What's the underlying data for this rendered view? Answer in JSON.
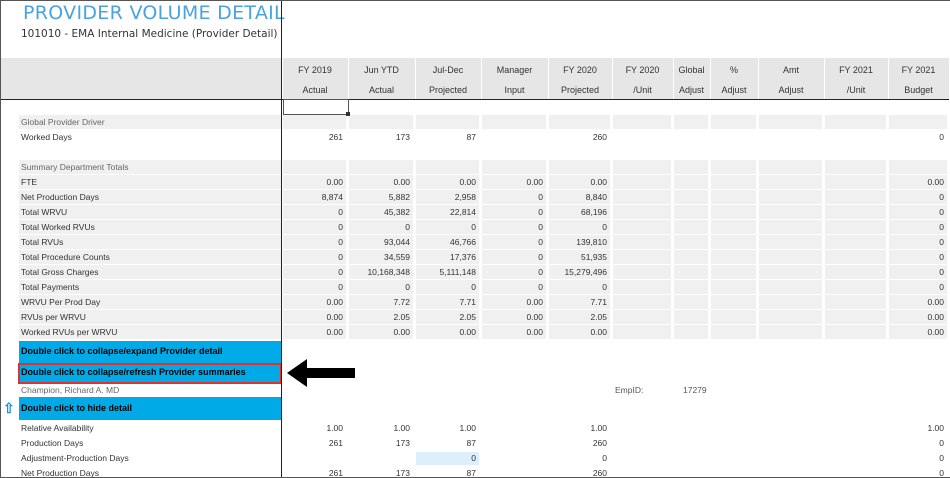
{
  "title": "PROVIDER VOLUME DETAIL",
  "subtitle": "101010 - EMA Internal Medicine (Provider Detail)",
  "columns": [
    {
      "line1": "FY 2019",
      "line2": "Actual"
    },
    {
      "line1": "Jun YTD",
      "line2": "Actual"
    },
    {
      "line1": "Jul-Dec",
      "line2": "Projected"
    },
    {
      "line1": "Manager",
      "line2": "Input"
    },
    {
      "line1": "FY 2020",
      "line2": "Projected"
    },
    {
      "line1": "FY 2020",
      "line2": "/Unit"
    },
    {
      "line1": "Global",
      "line2": "Adjust"
    },
    {
      "line1": "%",
      "line2": "Adjust"
    },
    {
      "line1": "Amt",
      "line2": "Adjust"
    },
    {
      "line1": "FY 2021",
      "line2": "/Unit"
    },
    {
      "line1": "FY 2021",
      "line2": "Budget"
    }
  ],
  "sections": {
    "global_driver": "Global Provider Driver",
    "summary_totals": "Summary Department Totals"
  },
  "rows": {
    "worked_days": {
      "label": "Worked Days",
      "values": [
        "261",
        "173",
        "87",
        "",
        "260",
        "",
        "",
        "",
        "",
        "",
        "0"
      ]
    },
    "summary": [
      {
        "label": "FTE",
        "values": [
          "0.00",
          "0.00",
          "0.00",
          "0.00",
          "0.00",
          "",
          "",
          "",
          "",
          "",
          "0.00"
        ]
      },
      {
        "label": "Net Production Days",
        "values": [
          "8,874",
          "5,882",
          "2,958",
          "0",
          "8,840",
          "",
          "",
          "",
          "",
          "",
          "0"
        ]
      },
      {
        "label": "Total WRVU",
        "values": [
          "0",
          "45,382",
          "22,814",
          "0",
          "68,196",
          "",
          "",
          "",
          "",
          "",
          "0"
        ]
      },
      {
        "label": "Total Worked RVUs",
        "values": [
          "0",
          "0",
          "0",
          "0",
          "0",
          "",
          "",
          "",
          "",
          "",
          "0"
        ]
      },
      {
        "label": "Total RVUs",
        "values": [
          "0",
          "93,044",
          "46,766",
          "0",
          "139,810",
          "",
          "",
          "",
          "",
          "",
          "0"
        ]
      },
      {
        "label": "Total Procedure Counts",
        "values": [
          "0",
          "34,559",
          "17,376",
          "0",
          "51,935",
          "",
          "",
          "",
          "",
          "",
          "0"
        ]
      },
      {
        "label": "Total Gross Charges",
        "values": [
          "0",
          "10,168,348",
          "5,111,148",
          "0",
          "15,279,496",
          "",
          "",
          "",
          "",
          "",
          "0"
        ]
      },
      {
        "label": "Total Payments",
        "values": [
          "0",
          "0",
          "0",
          "0",
          "0",
          "",
          "",
          "",
          "",
          "",
          "0"
        ]
      },
      {
        "label": "WRVU Per Prod Day",
        "values": [
          "0.00",
          "7.72",
          "7.71",
          "0.00",
          "7.71",
          "",
          "",
          "",
          "",
          "",
          "0.00"
        ]
      },
      {
        "label": "RVUs per WRVU",
        "values": [
          "0.00",
          "2.05",
          "2.05",
          "0.00",
          "2.05",
          "",
          "",
          "",
          "",
          "",
          "0.00"
        ]
      },
      {
        "label": "Worked RVUs per WRVU",
        "values": [
          "0.00",
          "0.00",
          "0.00",
          "0.00",
          "0.00",
          "",
          "",
          "",
          "",
          "",
          "0.00"
        ]
      }
    ],
    "detail": [
      {
        "label": "Relative Availability",
        "values": [
          "1.00",
          "1.00",
          "1.00",
          "",
          "1.00",
          "",
          "",
          "",
          "",
          "",
          "1.00"
        ]
      },
      {
        "label": "Production Days",
        "values": [
          "261",
          "173",
          "87",
          "",
          "260",
          "",
          "",
          "",
          "",
          "",
          "0"
        ]
      },
      {
        "label": "Adjustment-Production Days",
        "values": [
          "",
          "",
          "0",
          "",
          "0",
          "",
          "",
          "",
          "",
          "",
          "0"
        ]
      },
      {
        "label": "Net Production Days",
        "values": [
          "261",
          "173",
          "87",
          "",
          "260",
          "",
          "",
          "",
          "",
          "",
          "0"
        ]
      }
    ]
  },
  "buttons": {
    "collapse_expand": "Double click to collapse/expand Provider detail",
    "collapse_refresh": "Double click to collapse/refresh Provider summaries",
    "hide_detail": "Double click to hide detail"
  },
  "provider": {
    "name": "Champion, Richard A. MD",
    "empid_label": "EmpID:",
    "empid": "17279"
  },
  "colors": {
    "title": "#4aa3df",
    "button": "#00aae7",
    "highlight_outline": "#e03030",
    "band": "#f0f0f0",
    "header": "#e6e6e6"
  },
  "icons": {
    "callout": "left-arrow-icon",
    "collapse": "up-arrow-icon"
  }
}
